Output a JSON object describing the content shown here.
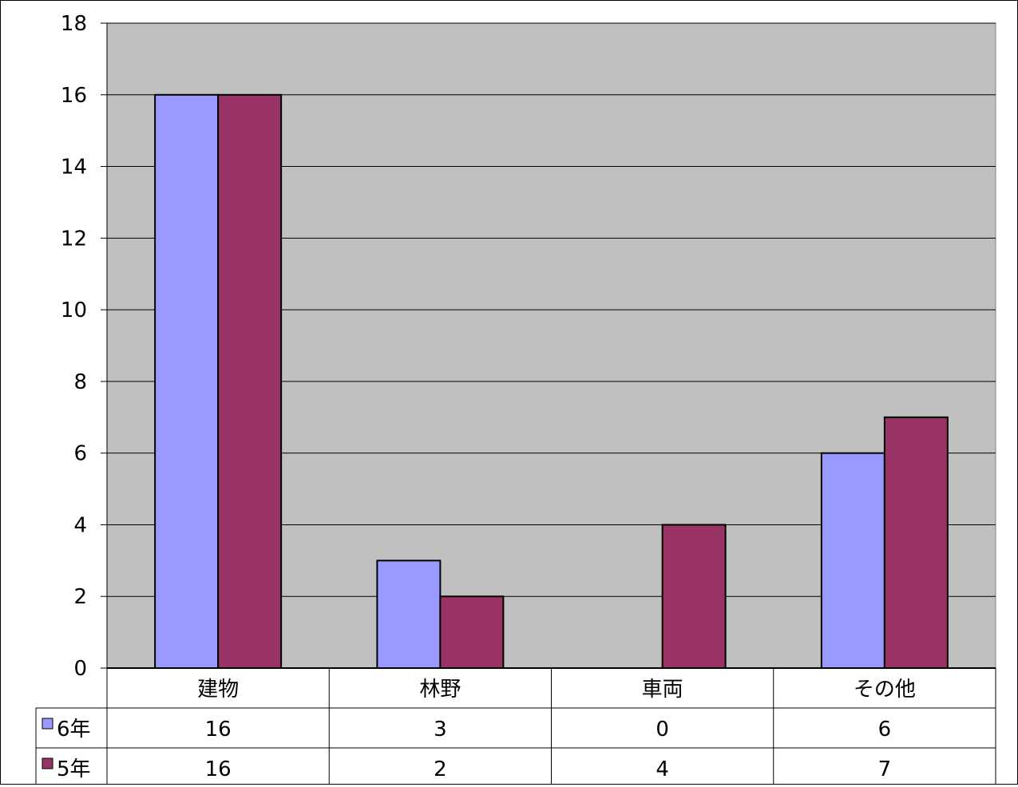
{
  "chart_data": {
    "type": "bar",
    "categories": [
      "建物",
      "林野",
      "車両",
      "その他"
    ],
    "series": [
      {
        "name": "6年",
        "values": [
          16,
          3,
          0,
          6
        ],
        "color": "#9999ff"
      },
      {
        "name": "5年",
        "values": [
          16,
          2,
          4,
          7
        ],
        "color": "#993366"
      }
    ],
    "yticks": [
      "0",
      "2",
      "4",
      "6",
      "8",
      "10",
      "12",
      "14",
      "16",
      "18"
    ],
    "ylim": [
      0,
      18
    ],
    "grid": true,
    "legend": "data-table",
    "plot_background": "#c0c0c0"
  }
}
